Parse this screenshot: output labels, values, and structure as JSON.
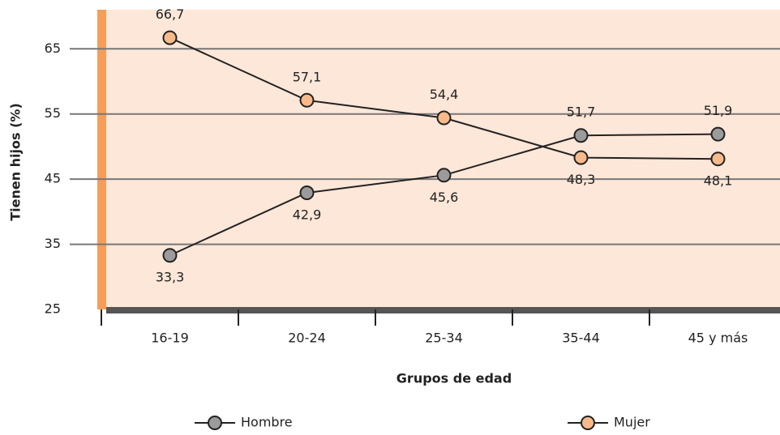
{
  "chart_data": {
    "type": "line",
    "x_label": "Grupos de edad",
    "y_label": "Tienen hijos (%)",
    "categories": [
      "16-19",
      "20-24",
      "25-34",
      "35-44",
      "45 y más"
    ],
    "series": [
      {
        "name": "Hombre",
        "color": "#9b9b9b",
        "values": [
          33.3,
          42.9,
          45.6,
          51.7,
          51.9
        ],
        "value_labels": [
          "33,3",
          "42,9",
          "45,6",
          "51,7",
          "51,9"
        ]
      },
      {
        "name": "Mujer",
        "color": "#f8b98b",
        "values": [
          66.7,
          57.1,
          54.4,
          48.3,
          48.1
        ],
        "value_labels": [
          "66,7",
          "57,1",
          "54,4",
          "48,3",
          "48,1"
        ]
      }
    ],
    "ylim": [
      25,
      71
    ],
    "yticks": [
      25,
      35,
      45,
      55,
      65
    ],
    "grid": true
  }
}
